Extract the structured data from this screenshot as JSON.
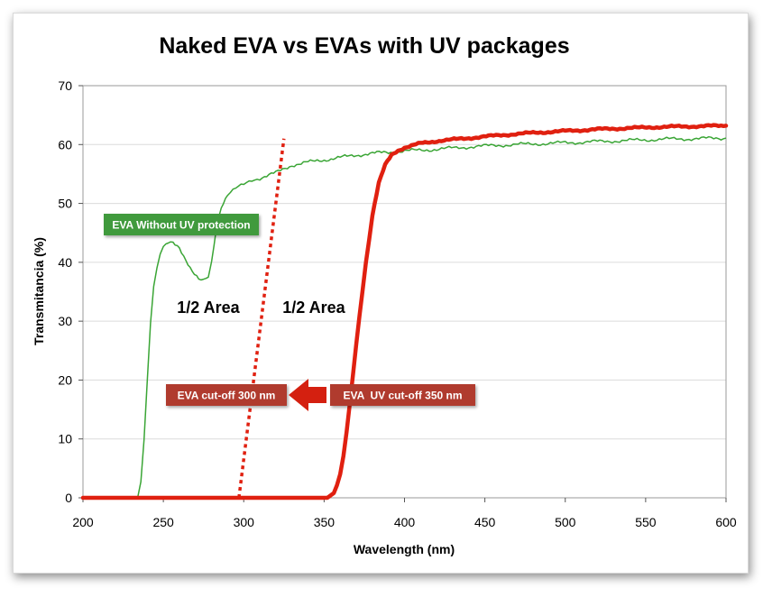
{
  "chart_data": {
    "type": "line",
    "title": "Naked EVA vs EVAs with UV packages",
    "xlabel": "Wavelength (nm)",
    "ylabel": "Transmitancia (%)",
    "xlim": [
      200,
      600
    ],
    "ylim": [
      0,
      70
    ],
    "xticks": [
      200,
      250,
      300,
      350,
      400,
      450,
      500,
      550,
      600
    ],
    "yticks": [
      0,
      10,
      20,
      30,
      40,
      50,
      60,
      70
    ],
    "grid": "horizontal",
    "colors": {
      "green": "#3aa535",
      "red": "#e02010",
      "label_green": "#3f9a3c",
      "label_red": "#b03a2e",
      "grid": "#dcdcdc"
    },
    "series": [
      {
        "name": "EVA Without UV protection",
        "color": "#3aa535",
        "x": [
          200,
          234,
          236,
          238,
          240,
          242,
          244,
          246,
          248,
          250,
          253,
          256,
          260,
          264,
          268,
          272,
          275,
          278,
          280,
          283,
          286,
          290,
          295,
          300,
          305,
          310,
          320,
          330,
          340,
          350,
          360,
          370,
          380,
          390,
          400,
          420,
          440,
          460,
          480,
          500,
          520,
          540,
          560,
          580,
          600
        ],
        "y": [
          0,
          0,
          3,
          10,
          20,
          30,
          36,
          39,
          41.5,
          42.5,
          43.2,
          43.2,
          42.5,
          40.5,
          38.5,
          37,
          36.8,
          37.5,
          40,
          46,
          49.5,
          51.5,
          52.5,
          53.2,
          54,
          54.3,
          55.2,
          56.5,
          57,
          57.4,
          57.8,
          58.2,
          58.5,
          58.7,
          58.9,
          59.2,
          59.6,
          59.9,
          60.1,
          60.3,
          60.5,
          60.7,
          60.9,
          61,
          61.1
        ]
      },
      {
        "name": "EVA UV cut-off 350 nm",
        "color": "#e02010",
        "x": [
          200,
          352,
          356,
          358,
          360,
          362,
          364,
          366,
          368,
          370,
          372,
          374,
          376,
          378,
          380,
          384,
          388,
          392,
          396,
          400,
          410,
          420,
          440,
          460,
          480,
          500,
          520,
          540,
          560,
          580,
          600
        ],
        "y": [
          0,
          0,
          0.8,
          2,
          4,
          7,
          11,
          16,
          21,
          26,
          31,
          35.5,
          40,
          44,
          48,
          53.5,
          56.5,
          58.2,
          59,
          59.5,
          60.2,
          60.6,
          61.1,
          61.6,
          62,
          62.3,
          62.6,
          62.8,
          63,
          63.1,
          63.2
        ]
      },
      {
        "name": "EVA cut-off 300 nm",
        "style": "dotted",
        "color": "#e02010",
        "x": [
          297,
          325
        ],
        "y": [
          0,
          61
        ]
      }
    ],
    "annotations": [
      {
        "text": "EVA Without UV protection",
        "style": "green-box"
      },
      {
        "text": "1/2 Area",
        "style": "bold"
      },
      {
        "text": "1/2 Area",
        "style": "bold"
      },
      {
        "text": "EVA cut-off 300 nm",
        "style": "red-box"
      },
      {
        "text": "EVA  UV cut-off 350 nm",
        "style": "red-box"
      }
    ]
  }
}
